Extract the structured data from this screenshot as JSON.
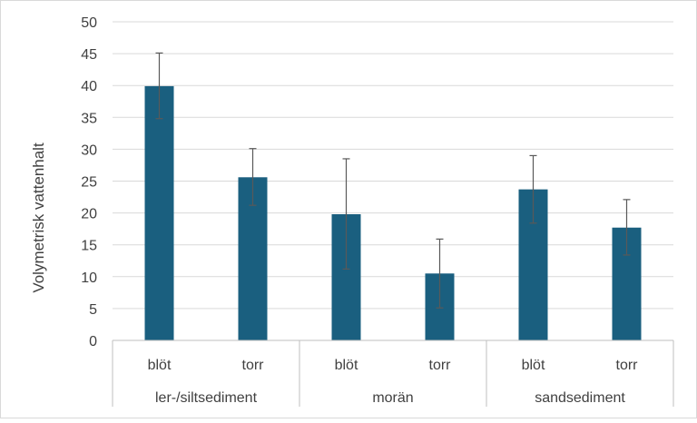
{
  "chart_data": {
    "type": "bar",
    "title": "",
    "xlabel": "",
    "ylabel": "Volymetrisk vattenhalt",
    "ylim": [
      0,
      50
    ],
    "yticks": [
      0,
      5,
      10,
      15,
      20,
      25,
      30,
      35,
      40,
      45,
      50
    ],
    "grid": true,
    "bar_color": "#1a5f7f",
    "groups": [
      "ler-/siltsediment",
      "morän",
      "sandsediment"
    ],
    "categories": [
      "blöt",
      "torr",
      "blöt",
      "torr",
      "blöt",
      "torr"
    ],
    "category_group": [
      0,
      0,
      1,
      1,
      2,
      2
    ],
    "values": [
      39.9,
      25.6,
      19.8,
      10.5,
      23.7,
      17.7
    ],
    "error_low": [
      34.8,
      21.2,
      11.2,
      5.1,
      18.4,
      13.4
    ],
    "error_high": [
      45.1,
      30.1,
      28.5,
      15.9,
      29.0,
      22.1
    ]
  }
}
